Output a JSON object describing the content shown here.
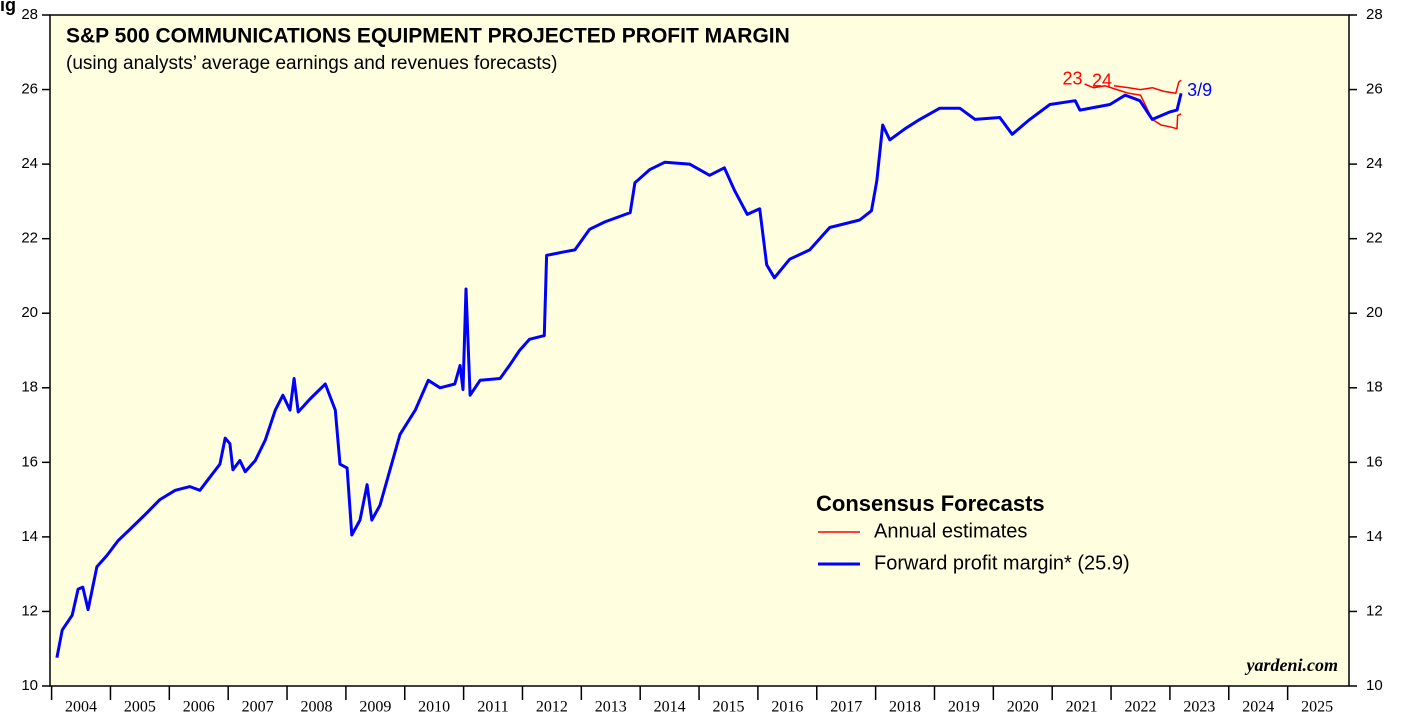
{
  "header_fragment": "ig",
  "chart_data": {
    "type": "line",
    "title": "S&P 500 COMMUNICATIONS EQUIPMENT PROJECTED PROFIT MARGIN",
    "subtitle": "(using analysts’ average earnings and revenues forecasts)",
    "watermark": "yardeni.com",
    "legend_title": "Consensus Forecasts",
    "legend": "lower-right",
    "xlim": [
      2004,
      2026
    ],
    "xticks": [
      2004,
      2005,
      2006,
      2007,
      2008,
      2009,
      2010,
      2011,
      2012,
      2013,
      2014,
      2015,
      2016,
      2017,
      2018,
      2019,
      2020,
      2021,
      2022,
      2023,
      2024,
      2025
    ],
    "ylim": [
      10,
      28
    ],
    "yticks": [
      10,
      12,
      14,
      16,
      18,
      20,
      22,
      24,
      26,
      28
    ],
    "y2lim": [
      10,
      28
    ],
    "y2ticks": [
      10,
      12,
      14,
      16,
      18,
      20,
      22,
      24,
      26,
      28
    ],
    "background": "#ffffe0",
    "series": [
      {
        "name": "Annual estimates",
        "color": "#ff0000",
        "width": 1.5,
        "lines": [
          {
            "label": "23",
            "x": [
              2021.55,
              2021.7,
              2021.9,
              2022.1,
              2022.3,
              2022.5,
              2022.7,
              2022.85,
              2023.0,
              2023.12,
              2023.13,
              2023.19
            ],
            "values": [
              26.15,
              26.05,
              26.1,
              26.0,
              25.9,
              25.85,
              25.2,
              25.05,
              25.0,
              24.95,
              25.3,
              25.35
            ]
          },
          {
            "label": "24",
            "x": [
              2022.05,
              2022.3,
              2022.5,
              2022.7,
              2022.9,
              2023.1,
              2023.15,
              2023.19
            ],
            "values": [
              26.1,
              26.05,
              26.0,
              26.05,
              25.95,
              25.9,
              26.2,
              26.25
            ]
          }
        ]
      },
      {
        "name": "Forward profit margin* (25.9)",
        "color": "#0000ff",
        "width": 3,
        "end_label": "3/9",
        "x": [
          2004.09,
          2004.18,
          2004.35,
          2004.45,
          2004.53,
          2004.62,
          2004.77,
          2004.94,
          2005.13,
          2005.33,
          2005.59,
          2005.84,
          2006.1,
          2006.35,
          2006.52,
          2006.69,
          2006.86,
          2006.95,
          2007.03,
          2007.08,
          2007.2,
          2007.29,
          2007.46,
          2007.63,
          2007.8,
          2007.93,
          2008.05,
          2008.12,
          2008.19,
          2008.39,
          2008.65,
          2008.82,
          2008.9,
          2009.02,
          2009.1,
          2009.24,
          2009.36,
          2009.44,
          2009.58,
          2009.75,
          2009.92,
          2010.18,
          2010.4,
          2010.6,
          2010.85,
          2010.94,
          2010.99,
          2011.04,
          2011.11,
          2011.28,
          2011.62,
          2011.78,
          2011.95,
          2012.12,
          2012.37,
          2012.41,
          2012.72,
          2012.89,
          2013.14,
          2013.4,
          2013.83,
          2013.91,
          2014.16,
          2014.42,
          2014.84,
          2015.18,
          2015.43,
          2015.6,
          2015.82,
          2016.03,
          2016.15,
          2016.28,
          2016.54,
          2016.88,
          2017.22,
          2017.73,
          2017.93,
          2018.02,
          2018.12,
          2018.24,
          2018.5,
          2018.75,
          2019.09,
          2019.43,
          2019.69,
          2020.11,
          2020.32,
          2020.62,
          2020.96,
          2021.39,
          2021.47,
          2021.98,
          2022.24,
          2022.49,
          2022.7,
          2023.0,
          2023.12,
          2023.19
        ],
        "values": [
          10.76,
          11.5,
          11.9,
          12.6,
          12.65,
          12.05,
          13.2,
          13.5,
          13.9,
          14.2,
          14.6,
          15.0,
          15.25,
          15.35,
          15.25,
          15.6,
          15.95,
          16.65,
          16.5,
          15.8,
          16.05,
          15.75,
          16.05,
          16.6,
          17.4,
          17.8,
          17.4,
          18.25,
          17.35,
          17.7,
          18.1,
          17.4,
          15.95,
          15.85,
          14.05,
          14.45,
          15.4,
          14.45,
          14.85,
          15.8,
          16.75,
          17.4,
          18.2,
          18.0,
          18.1,
          18.6,
          17.95,
          20.65,
          17.8,
          18.2,
          18.25,
          18.6,
          19.0,
          19.3,
          19.4,
          21.55,
          21.65,
          21.7,
          22.25,
          22.45,
          22.7,
          23.5,
          23.85,
          24.05,
          24.0,
          23.7,
          23.9,
          23.3,
          22.65,
          22.8,
          21.3,
          20.95,
          21.45,
          21.7,
          22.3,
          22.5,
          22.75,
          23.55,
          25.05,
          24.65,
          24.95,
          25.2,
          25.5,
          25.5,
          25.2,
          25.25,
          24.8,
          25.2,
          25.6,
          25.7,
          25.45,
          25.6,
          25.85,
          25.7,
          25.2,
          25.4,
          25.45,
          25.9
        ]
      }
    ]
  }
}
